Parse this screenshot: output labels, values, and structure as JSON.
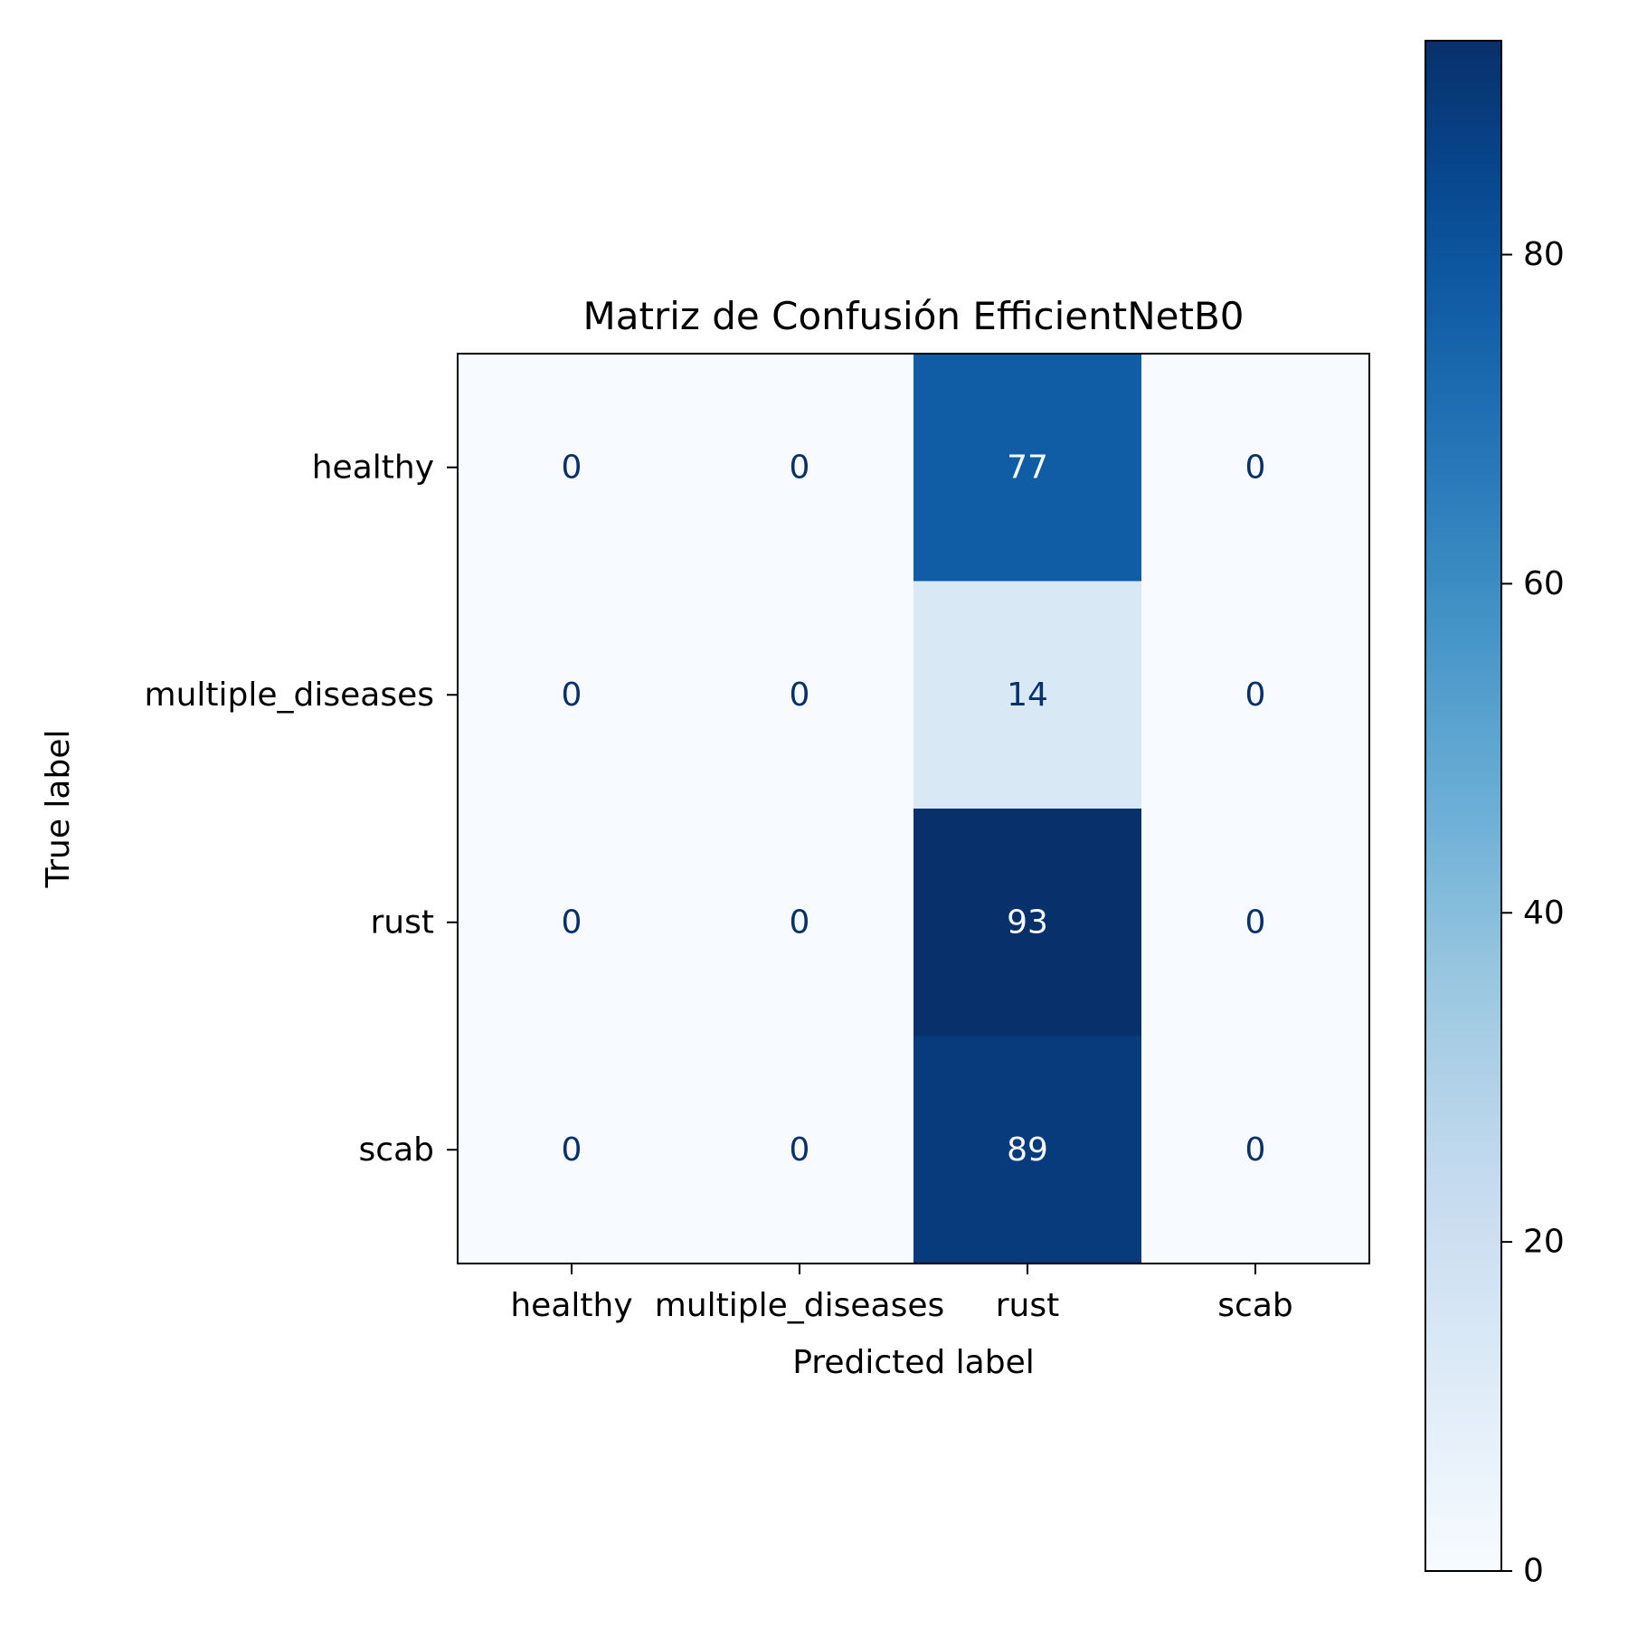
{
  "chart_data": {
    "type": "heatmap",
    "title": "Matriz de Confusión EfficientNetB0",
    "xlabel": "Predicted label",
    "ylabel": "True label",
    "x_categories": [
      "healthy",
      "multiple_diseases",
      "rust",
      "scab"
    ],
    "y_categories": [
      "healthy",
      "multiple_diseases",
      "rust",
      "scab"
    ],
    "values": [
      [
        0,
        0,
        77,
        0
      ],
      [
        0,
        0,
        14,
        0
      ],
      [
        0,
        0,
        93,
        0
      ],
      [
        0,
        0,
        89,
        0
      ]
    ],
    "colormap": "Blues",
    "colorbar": {
      "vmin": 0,
      "vmax": 93,
      "ticks": [
        0,
        20,
        40,
        60,
        80
      ],
      "tick_labels": [
        "0",
        "20",
        "40",
        "60",
        "80"
      ]
    },
    "grid": false
  },
  "colors": {
    "text_dark": "#08306b",
    "text_light": "#f7fbff",
    "background": "#ffffff"
  }
}
